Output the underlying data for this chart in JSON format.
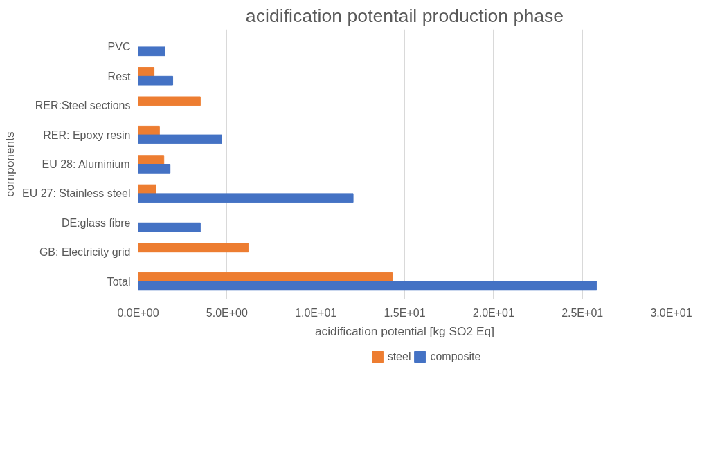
{
  "chart_data": {
    "type": "bar",
    "orientation": "horizontal",
    "title": "acidification potentail production phase",
    "xlabel": "acidification potential [kg SO2 Eq]",
    "ylabel": "components",
    "categories": [
      "PVC",
      "Rest",
      "RER:Steel sections",
      "RER: Epoxy resin",
      "EU 28: Aluminium",
      "EU 27: Stainless steel",
      "DE:glass fibre",
      "GB: Electricity grid",
      "Total"
    ],
    "series": [
      {
        "name": "steel",
        "color": "#ed7d31",
        "values": [
          null,
          0.9,
          3.5,
          1.2,
          1.45,
          1.0,
          null,
          6.2,
          14.3
        ]
      },
      {
        "name": "composite",
        "color": "#4472c4",
        "values": [
          1.5,
          1.95,
          null,
          4.7,
          1.8,
          12.1,
          3.5,
          null,
          25.8
        ]
      }
    ],
    "xlim": [
      0,
      30
    ],
    "xticks": [
      {
        "value": 0,
        "label": "0.0E+00"
      },
      {
        "value": 5,
        "label": "5.0E+00"
      },
      {
        "value": 10,
        "label": "1.0E+01"
      },
      {
        "value": 15,
        "label": "1.5E+01"
      },
      {
        "value": 20,
        "label": "2.0E+01"
      },
      {
        "value": 25,
        "label": "2.5E+01"
      },
      {
        "value": 30,
        "label": "3.0E+01"
      }
    ],
    "grid": "x",
    "legend": "bottom"
  }
}
